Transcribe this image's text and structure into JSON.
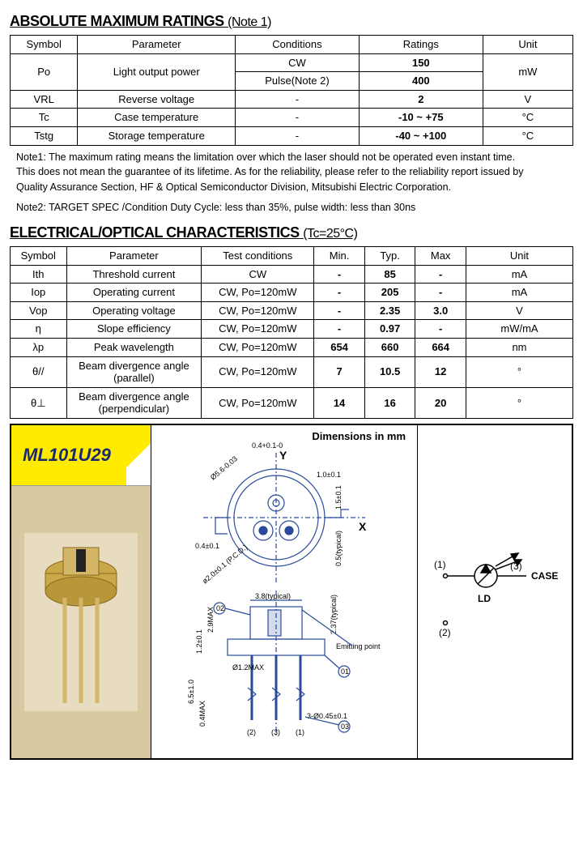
{
  "section1": {
    "title": "ABSOLUTE MAXIMUM RATINGS",
    "title_note": "(Note 1)",
    "headers": [
      "Symbol",
      "Parameter",
      "Conditions",
      "Ratings",
      "Unit"
    ],
    "rows": [
      {
        "symbol": "Po",
        "parameter": "Light output power",
        "conditions": [
          "CW",
          "Pulse(Note 2)"
        ],
        "ratings": [
          "150",
          "400"
        ],
        "unit": "mW",
        "rowspan": 2
      },
      {
        "symbol": "VRL",
        "parameter": "Reverse voltage",
        "conditions": "-",
        "ratings": "2",
        "unit": "V"
      },
      {
        "symbol": "Tc",
        "parameter": "Case temperature",
        "conditions": "-",
        "ratings": "-10 ~  +75",
        "unit": "°C"
      },
      {
        "symbol": "Tstg",
        "parameter": "Storage temperature",
        "conditions": "-",
        "ratings": "-40 ~  +100",
        "unit": "°C"
      }
    ]
  },
  "notes": {
    "n1a": "Note1: The maximum rating means the limitation over which the laser should not be operated even instant time.",
    "n1b": "This does not mean the guarantee of its lifetime. As for the reliability, please refer to the reliability report issued by",
    "n1c": "Quality Assurance Section, HF & Optical Semiconductor Division, Mitsubishi Electric Corporation.",
    "n2": "Note2: TARGET SPEC /Condition   Duty Cycle: less than 35%, pulse width:  less than 30ns"
  },
  "section2": {
    "title": "ELECTRICAL/OPTICAL CHARACTERISTICS",
    "title_note": "(Tc=25°C)",
    "headers": [
      "Symbol",
      "Parameter",
      "Test conditions",
      "Min.",
      "Typ.",
      "Max",
      "Unit"
    ],
    "rows": [
      {
        "sym": "Ith",
        "param": "Threshold  current",
        "cond": "CW",
        "min": "-",
        "typ": "85",
        "max": "-",
        "unit": "mA"
      },
      {
        "sym": "Iop",
        "param": "Operating current",
        "cond": "CW, Po=120mW",
        "min": "-",
        "typ": "205",
        "max": "-",
        "unit": "mA"
      },
      {
        "sym": "Vop",
        "param": "Operating  voltage",
        "cond": "CW, Po=120mW",
        "min": "-",
        "typ": "2.35",
        "max": "3.0",
        "unit": "V"
      },
      {
        "sym": "η",
        "param": "Slope  efficiency",
        "cond": "CW, Po=120mW",
        "min": "-",
        "typ": "0.97",
        "max": "-",
        "unit": "mW/mA"
      },
      {
        "sym": "λp",
        "param": "Peak  wavelength",
        "cond": "CW, Po=120mW",
        "min": "654",
        "typ": "660",
        "max": "664",
        "unit": "nm"
      },
      {
        "sym": "θ//",
        "param": "Beam divergence angle (parallel)",
        "cond": "CW, Po=120mW",
        "min": "7",
        "typ": "10.5",
        "max": "12",
        "unit": "°"
      },
      {
        "sym": "θ⊥",
        "param": "Beam divergence angle (perpendicular)",
        "cond": "CW, Po=120mW",
        "min": "14",
        "typ": "16",
        "max": "20",
        "unit": "°"
      }
    ]
  },
  "figure": {
    "part_number": "ML101U29",
    "dim_title": "Dimensions in mm",
    "dims": {
      "y_label": "Y",
      "x_label": "X",
      "top_offset": "0.4+0.1-0",
      "dia_outer": "Ø5.6-0.03",
      "right_ext": "1.0±0.1",
      "left_flat": "0.4±0.1",
      "pcd": "ø2.0±0.1 (P.C.D.)",
      "side_h": "1.5±0.1",
      "side_typ": "0.5(typical)",
      "width_typ": "3.8(typical)",
      "height_typ": "2.37(typical)",
      "can_h": "2.9MAX",
      "base_h": "1.2±0.1",
      "pin_dia": "Ø1.2MAX",
      "pin_len": "6.5±1.0",
      "stub": "0.4MAX",
      "leads": "3-Ø0.45±0.1",
      "emit": "Emitting point",
      "callout1": "02",
      "callout2": "01",
      "callout3": "03",
      "bottom_pins": [
        "(2)",
        "(3)",
        "(1)"
      ]
    },
    "pins": {
      "p1": "(1)",
      "p2": "(2)",
      "p3": "(3)",
      "case": "CASE",
      "ld": "LD"
    },
    "colors": {
      "drawing_stroke": "#2a4b9b",
      "part_bg": "#ffeb00",
      "part_text": "#1a2a6c",
      "photo_bg": "#d9c9a3",
      "photo_metal": "#c9a84a"
    }
  }
}
